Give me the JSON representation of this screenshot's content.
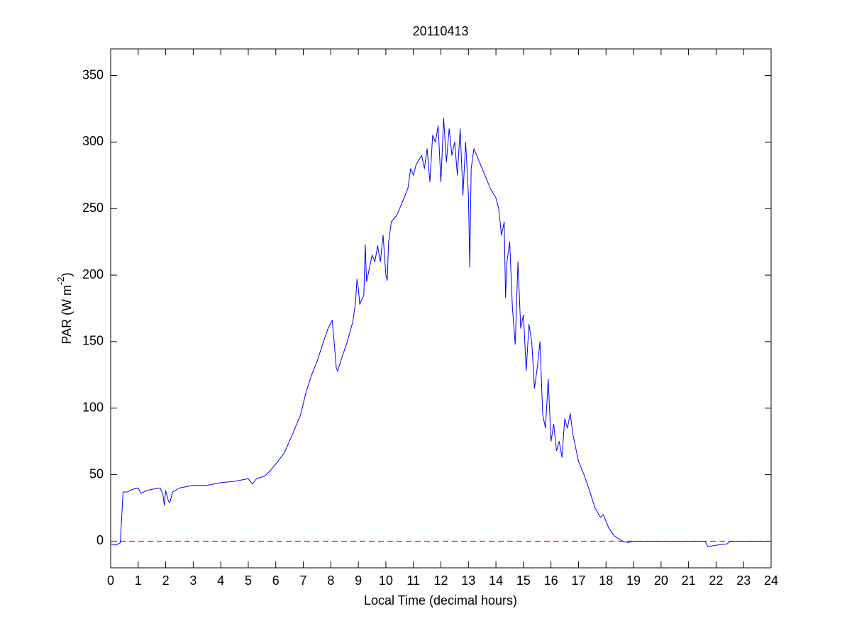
{
  "chart_data": {
    "type": "line",
    "title": "20110413",
    "xlabel": "Local Time (decimal hours)",
    "ylabel": {
      "text": "PAR (W m",
      "superscript": "-2",
      "suffix": ")"
    },
    "xlim": [
      0,
      24
    ],
    "xticks": [
      0,
      1,
      2,
      3,
      4,
      5,
      6,
      7,
      8,
      9,
      10,
      11,
      12,
      13,
      14,
      15,
      16,
      17,
      18,
      19,
      20,
      21,
      22,
      23,
      24
    ],
    "ylim": [
      -20,
      370
    ],
    "yticks": [
      0,
      50,
      100,
      150,
      200,
      250,
      300,
      350
    ],
    "grid": false,
    "hline": {
      "value": 0,
      "color": "#ff0000",
      "dashed": true
    },
    "series": [
      {
        "color": "#0000ff",
        "x": [
          0,
          0.2,
          0.35,
          0.45,
          0.6,
          0.8,
          1.0,
          1.1,
          1.3,
          1.5,
          1.8,
          1.9,
          1.95,
          2.0,
          2.1,
          2.15,
          2.25,
          2.5,
          3.0,
          3.5,
          4.0,
          4.5,
          5.0,
          5.15,
          5.3,
          5.6,
          5.8,
          6.0,
          6.3,
          6.6,
          6.9,
          7.1,
          7.3,
          7.5,
          7.7,
          7.9,
          8.05,
          8.1,
          8.2,
          8.25,
          8.4,
          8.6,
          8.8,
          8.9,
          8.95,
          9.0,
          9.05,
          9.2,
          9.25,
          9.3,
          9.4,
          9.5,
          9.6,
          9.7,
          9.8,
          9.9,
          10.0,
          10.05,
          10.1,
          10.2,
          10.4,
          10.6,
          10.8,
          10.9,
          11.0,
          11.1,
          11.3,
          11.4,
          11.5,
          11.6,
          11.7,
          11.8,
          11.9,
          12.0,
          12.1,
          12.2,
          12.3,
          12.4,
          12.5,
          12.6,
          12.7,
          12.8,
          12.9,
          13.0,
          13.05,
          13.1,
          13.2,
          13.4,
          13.6,
          13.8,
          14.0,
          14.1,
          14.2,
          14.3,
          14.35,
          14.4,
          14.5,
          14.6,
          14.7,
          14.8,
          14.9,
          15.0,
          15.1,
          15.2,
          15.3,
          15.4,
          15.5,
          15.6,
          15.7,
          15.8,
          15.9,
          16.0,
          16.1,
          16.2,
          16.3,
          16.4,
          16.5,
          16.6,
          16.7,
          16.8,
          17.0,
          17.2,
          17.4,
          17.6,
          17.8,
          17.9,
          18.1,
          18.3,
          18.6,
          18.8,
          19.0,
          20.0,
          21.0,
          21.6,
          21.7,
          22.0,
          22.4,
          22.5,
          23.0,
          24.0
        ],
        "values": [
          -2,
          -3,
          -1,
          37,
          37,
          39,
          40,
          36,
          38,
          39,
          40,
          35,
          27,
          38,
          30,
          29,
          37,
          40,
          42,
          42,
          44,
          45,
          47,
          43,
          47,
          49,
          53,
          58,
          66,
          80,
          95,
          112,
          125,
          135,
          148,
          160,
          166,
          155,
          130,
          128,
          138,
          150,
          165,
          180,
          197,
          190,
          178,
          185,
          223,
          195,
          205,
          215,
          210,
          222,
          210,
          230,
          200,
          196,
          225,
          240,
          245,
          255,
          265,
          280,
          275,
          283,
          290,
          280,
          295,
          270,
          305,
          300,
          312,
          270,
          318,
          285,
          310,
          290,
          300,
          275,
          310,
          260,
          300,
          260,
          206,
          280,
          295,
          285,
          275,
          265,
          258,
          250,
          230,
          240,
          183,
          210,
          225,
          175,
          148,
          210,
          160,
          170,
          128,
          163,
          150,
          115,
          130,
          150,
          95,
          85,
          122,
          75,
          88,
          68,
          75,
          63,
          92,
          85,
          96,
          80,
          60,
          50,
          38,
          25,
          18,
          20,
          10,
          4,
          0,
          -1,
          0,
          0,
          0,
          0,
          -4,
          -3,
          -2,
          0,
          0,
          0
        ]
      }
    ]
  }
}
